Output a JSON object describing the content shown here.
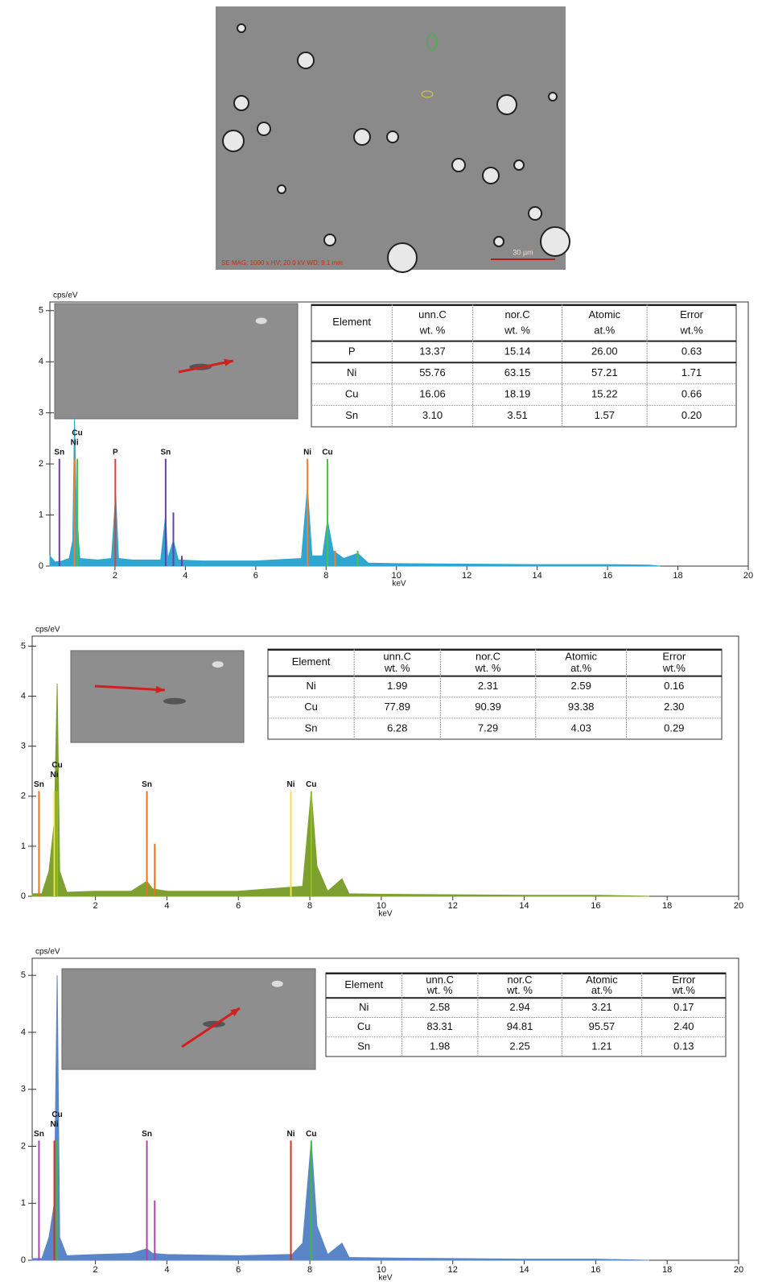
{
  "sem_image": {
    "caption": "SE  MAG: 1000 x   HV: 20.0 kV   WD: 9.1 mm",
    "scale_bar": "30 µm"
  },
  "chart_data": [
    {
      "type": "spectrum",
      "y_label": "cps/eV",
      "x_label": "keV",
      "xlim": [
        0.15,
        20
      ],
      "ylim": [
        0,
        5.17
      ],
      "xticks": [
        2,
        4,
        6,
        8,
        10,
        12,
        14,
        16,
        18,
        20
      ],
      "yticks": [
        0,
        1,
        2,
        3,
        4,
        5
      ],
      "series": [
        {
          "color": "#2fa6d2",
          "x": [
            0.15,
            0.3,
            0.5,
            0.7,
            0.8,
            0.85,
            0.9,
            1.0,
            1.5,
            1.9,
            2.02,
            2.1,
            2.5,
            3.3,
            3.44,
            3.5,
            3.66,
            3.8,
            4.5,
            6,
            7.3,
            7.47,
            7.6,
            7.9,
            8.04,
            8.2,
            8.5,
            8.9,
            9.2,
            10,
            12,
            14,
            16,
            17.2,
            17.5
          ],
          "values": [
            0.2,
            0.08,
            0.1,
            0.15,
            0.5,
            2.9,
            1.2,
            0.15,
            0.12,
            0.15,
            1.4,
            0.15,
            0.12,
            0.12,
            1.0,
            0.15,
            0.5,
            0.12,
            0.1,
            0.1,
            0.15,
            1.55,
            0.2,
            0.2,
            0.9,
            0.3,
            0.15,
            0.25,
            0.06,
            0.05,
            0.04,
            0.03,
            0.03,
            0.02,
            0
          ]
        },
        {
          "name": "Sn",
          "color": "#6840a8",
          "x": [
            0.42,
            3.44,
            3.66,
            3.9
          ],
          "values": [
            2.1,
            2.1,
            1.05,
            0.2
          ]
        },
        {
          "name": "Ni",
          "color": "#f08030",
          "x": [
            0.85,
            7.47,
            8.26
          ],
          "values": [
            2.1,
            2.1,
            0.3
          ]
        },
        {
          "name": "Cu",
          "color": "#50c040",
          "x": [
            0.93,
            8.04,
            8.9
          ],
          "values": [
            2.1,
            2.1,
            0.3
          ]
        },
        {
          "name": "P",
          "color": "#e04030",
          "x": [
            2.01
          ],
          "values": [
            2.1
          ]
        }
      ],
      "table": {
        "header": [
          "Element",
          "unn.C",
          "nor.C",
          "Atomic",
          "Error"
        ],
        "subheader": [
          "wt. %",
          "wt. %",
          "at.%",
          "wt.%"
        ],
        "rows": [
          [
            "P",
            "13.37",
            "15.14",
            "26.00",
            "0.63"
          ],
          [
            "Ni",
            "55.76",
            "63.15",
            "57.21",
            "1.71"
          ],
          [
            "Cu",
            "16.06",
            "18.19",
            "15.22",
            "0.66"
          ],
          [
            "Sn",
            "3.10",
            "3.51",
            "1.57",
            "0.20"
          ]
        ]
      }
    },
    {
      "type": "spectrum",
      "y_label": "cps/eV",
      "x_label": "keV",
      "xlim": [
        0.23,
        20
      ],
      "ylim": [
        0,
        5.2
      ],
      "xticks": [
        2,
        4,
        6,
        8,
        10,
        12,
        14,
        16,
        18,
        20
      ],
      "yticks": [
        0,
        1,
        2,
        3,
        4,
        5
      ],
      "series": [
        {
          "color": "#7da030",
          "x": [
            0.23,
            0.5,
            0.7,
            0.85,
            0.93,
            1.0,
            1.2,
            2,
            3,
            3.44,
            3.6,
            4,
            6,
            7.8,
            8.04,
            8.2,
            8.5,
            8.9,
            9.1,
            10,
            12,
            14,
            16,
            17.5
          ],
          "values": [
            0.05,
            0.05,
            0.5,
            1.5,
            4.25,
            0.5,
            0.08,
            0.1,
            0.1,
            0.3,
            0.15,
            0.1,
            0.1,
            0.2,
            2.1,
            0.6,
            0.1,
            0.35,
            0.05,
            0.04,
            0.03,
            0.02,
            0.02,
            0
          ]
        },
        {
          "name": "Sn",
          "color": "#f07020",
          "x": [
            0.42,
            3.44,
            3.66
          ],
          "values": [
            2.1,
            2.1,
            1.05
          ]
        },
        {
          "name": "Ni",
          "color": "#f0e040",
          "x": [
            0.85,
            7.47
          ],
          "values": [
            2.1,
            2.1
          ]
        },
        {
          "name": "Cu",
          "color": "#90c020",
          "x": [
            0.93,
            8.04
          ],
          "values": [
            2.1,
            2.1
          ]
        }
      ],
      "table": {
        "header": [
          "Element",
          "unn.C",
          "nor.C",
          "Atomic",
          "Error"
        ],
        "subheader": [
          "wt. %",
          "wt. %",
          "at.%",
          "wt.%"
        ],
        "rows": [
          [
            "Ni",
            "1.99",
            "2.31",
            "2.59",
            "0.16"
          ],
          [
            "Cu",
            "77.89",
            "90.39",
            "93.38",
            "2.30"
          ],
          [
            "Sn",
            "6.28",
            "7.29",
            "4.03",
            "0.29"
          ]
        ]
      }
    },
    {
      "type": "spectrum",
      "y_label": "cps/eV",
      "x_label": "keV",
      "xlim": [
        0.23,
        20
      ],
      "ylim": [
        0,
        5.3
      ],
      "xticks": [
        2,
        4,
        6,
        8,
        10,
        12,
        14,
        16,
        18,
        20
      ],
      "yticks": [
        0,
        1,
        2,
        3,
        4,
        5
      ],
      "series": [
        {
          "color": "#5a86c8",
          "x": [
            0.23,
            0.5,
            0.7,
            0.85,
            0.93,
            1.0,
            1.2,
            2,
            3,
            3.44,
            3.6,
            4,
            6,
            7.4,
            7.5,
            7.8,
            8.04,
            8.2,
            8.5,
            8.9,
            9.1,
            10,
            12,
            14,
            16,
            17.5
          ],
          "values": [
            0.03,
            0.03,
            0.4,
            1.0,
            5.0,
            0.4,
            0.08,
            0.1,
            0.12,
            0.2,
            0.12,
            0.1,
            0.08,
            0.1,
            0.1,
            0.3,
            2.1,
            0.6,
            0.1,
            0.3,
            0.05,
            0.04,
            0.03,
            0.02,
            0.02,
            0
          ]
        },
        {
          "name": "Sn",
          "color": "#b040b0",
          "x": [
            0.42,
            3.44,
            3.66
          ],
          "values": [
            2.1,
            2.1,
            1.05
          ]
        },
        {
          "name": "Ni",
          "color": "#d83020",
          "x": [
            0.85,
            7.47
          ],
          "values": [
            2.1,
            2.1
          ]
        },
        {
          "name": "Cu",
          "color": "#40b840",
          "x": [
            0.93,
            8.04
          ],
          "values": [
            2.1,
            2.1
          ]
        }
      ],
      "table": {
        "header": [
          "Element",
          "unn.C",
          "nor.C",
          "Atomic",
          "Error"
        ],
        "subheader": [
          "wt. %",
          "wt. %",
          "at.%",
          "wt.%"
        ],
        "rows": [
          [
            "Ni",
            "2.58",
            "2.94",
            "3.21",
            "0.17"
          ],
          [
            "Cu",
            "83.31",
            "94.81",
            "95.57",
            "2.40"
          ],
          [
            "Sn",
            "1.98",
            "2.25",
            "1.21",
            "0.13"
          ]
        ]
      }
    }
  ]
}
